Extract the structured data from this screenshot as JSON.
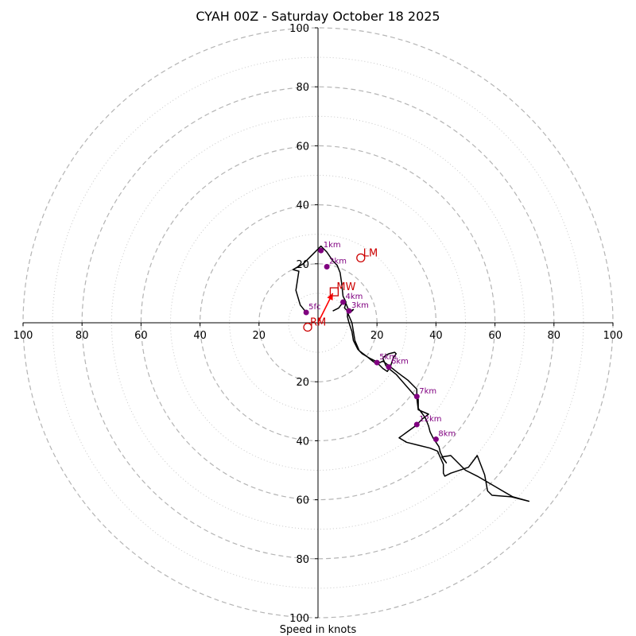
{
  "chart_data": {
    "type": "hodograph",
    "title": "CYAH 00Z - Saturday October 18 2025",
    "xlabel": "Speed in knots",
    "range": [
      -100,
      100
    ],
    "ticks": {
      "right": [
        "20",
        "40",
        "60",
        "80",
        "100"
      ],
      "left": [
        "20",
        "40",
        "60",
        "80",
        "100"
      ],
      "up": [
        "20",
        "40",
        "60",
        "80",
        "100"
      ],
      "down": [
        "20",
        "40",
        "60",
        "80",
        "100"
      ]
    },
    "rings_dashed": [
      20,
      40,
      60,
      80,
      100
    ],
    "rings_dotted": [
      10,
      30,
      50,
      70,
      90
    ],
    "profile_color": "#000000",
    "profile": [
      [
        5,
        4
      ],
      [
        7,
        5
      ],
      [
        8.5,
        7
      ],
      [
        9.5,
        6.5
      ],
      [
        10.5,
        4
      ],
      [
        11,
        3.5
      ],
      [
        12,
        4.5
      ],
      [
        10,
        3.5
      ],
      [
        11.5,
        0
      ],
      [
        12.5,
        -6
      ],
      [
        14,
        -9.5
      ],
      [
        16,
        -11
      ],
      [
        18.5,
        -13
      ],
      [
        20,
        -14
      ],
      [
        22,
        -13
      ],
      [
        24,
        -14.5
      ],
      [
        26.5,
        -16.5
      ],
      [
        28.5,
        -18
      ],
      [
        30.5,
        -19.5
      ],
      [
        32,
        -21
      ],
      [
        33.5,
        -22.5
      ],
      [
        33.5,
        -24.5
      ],
      [
        34,
        -26
      ],
      [
        34,
        -29
      ],
      [
        35.5,
        -31
      ],
      [
        36.5,
        -32.5
      ],
      [
        37.5,
        -35
      ],
      [
        38,
        -37
      ],
      [
        39,
        -39
      ],
      [
        40,
        -40.5
      ],
      [
        41,
        -42
      ],
      [
        41.5,
        -44
      ],
      [
        42.5,
        -46
      ],
      [
        43.5,
        -47.5
      ],
      [
        42,
        -45.5
      ],
      [
        45,
        -45
      ],
      [
        50,
        -50
      ],
      [
        54,
        -52
      ],
      [
        60,
        -55.5
      ],
      [
        66,
        -59
      ],
      [
        71.5,
        -60.5
      ],
      [
        65.5,
        -59
      ],
      [
        59,
        -58.5
      ],
      [
        57.5,
        -57
      ],
      [
        56.5,
        -51.5
      ],
      [
        54,
        -45
      ],
      [
        51,
        -49
      ],
      [
        45,
        -51
      ],
      [
        43,
        -52
      ],
      [
        42.5,
        -51
      ],
      [
        42.5,
        -48
      ],
      [
        40.5,
        -43.5
      ],
      [
        38,
        -42.5
      ],
      [
        34,
        -41.5
      ],
      [
        30,
        -40.5
      ],
      [
        27.5,
        -39
      ],
      [
        33,
        -35
      ],
      [
        35.5,
        -32.5
      ],
      [
        37.5,
        -31
      ],
      [
        34,
        -29.5
      ],
      [
        33.5,
        -25.5
      ],
      [
        26.5,
        -17.5
      ],
      [
        24,
        -15.5
      ],
      [
        23,
        -14.5
      ],
      [
        22,
        -12
      ],
      [
        23,
        -11
      ],
      [
        24,
        -10.5
      ],
      [
        26,
        -10
      ],
      [
        26.5,
        -10.5
      ],
      [
        25.5,
        -12
      ],
      [
        24.5,
        -15
      ],
      [
        23.5,
        -16.5
      ],
      [
        22,
        -15.5
      ],
      [
        19.5,
        -13
      ],
      [
        17.5,
        -12
      ],
      [
        15,
        -10.5
      ],
      [
        13.5,
        -9
      ],
      [
        12,
        -6
      ],
      [
        11.5,
        -3
      ],
      [
        10.5,
        0
      ],
      [
        10,
        2
      ],
      [
        10,
        4
      ],
      [
        9,
        5
      ],
      [
        9.5,
        7
      ],
      [
        8.5,
        9
      ],
      [
        8,
        13.5
      ],
      [
        7.5,
        17
      ],
      [
        6.5,
        19.5
      ],
      [
        5,
        21
      ],
      [
        3,
        24
      ],
      [
        1,
        26
      ],
      [
        -2,
        23
      ],
      [
        -5,
        20
      ],
      [
        -8.5,
        18
      ],
      [
        -6.5,
        17.5
      ],
      [
        -7.5,
        11
      ],
      [
        -6,
        6
      ],
      [
        -4,
        3.5
      ]
    ],
    "height_points": [
      {
        "label": "5fc",
        "u": -4,
        "v": 3.5
      },
      {
        "label": "1km",
        "u": 1,
        "v": 24.5
      },
      {
        "label": "2km",
        "u": 3,
        "v": 19
      },
      {
        "label": "3km",
        "u": 10.5,
        "v": 4
      },
      {
        "label": "4km",
        "u": 8.5,
        "v": 7
      },
      {
        "label": "5km",
        "u": 20,
        "v": -13.5
      },
      {
        "label": "6km",
        "u": 24,
        "v": -15
      },
      {
        "label": "7km",
        "u": 33.5,
        "v": -25
      },
      {
        "label": "8km",
        "u": 40,
        "v": -39.5
      },
      {
        "label": "12km",
        "u": 33.5,
        "v": -34.5
      }
    ],
    "height_point_color": "#800080",
    "motion_color": "#cc0000",
    "storm_motion": [
      {
        "label": "RM",
        "u": -3.5,
        "v": -1.5,
        "marker": "circle"
      },
      {
        "label": "LM",
        "u": 14.5,
        "v": 22,
        "marker": "circle"
      },
      {
        "label": "MW",
        "u": 5.5,
        "v": 10.5,
        "marker": "square"
      }
    ],
    "shear_arrow": {
      "from_u": 0,
      "from_v": 0,
      "to_u": 5,
      "to_v": 10,
      "color": "#ff0000"
    }
  }
}
